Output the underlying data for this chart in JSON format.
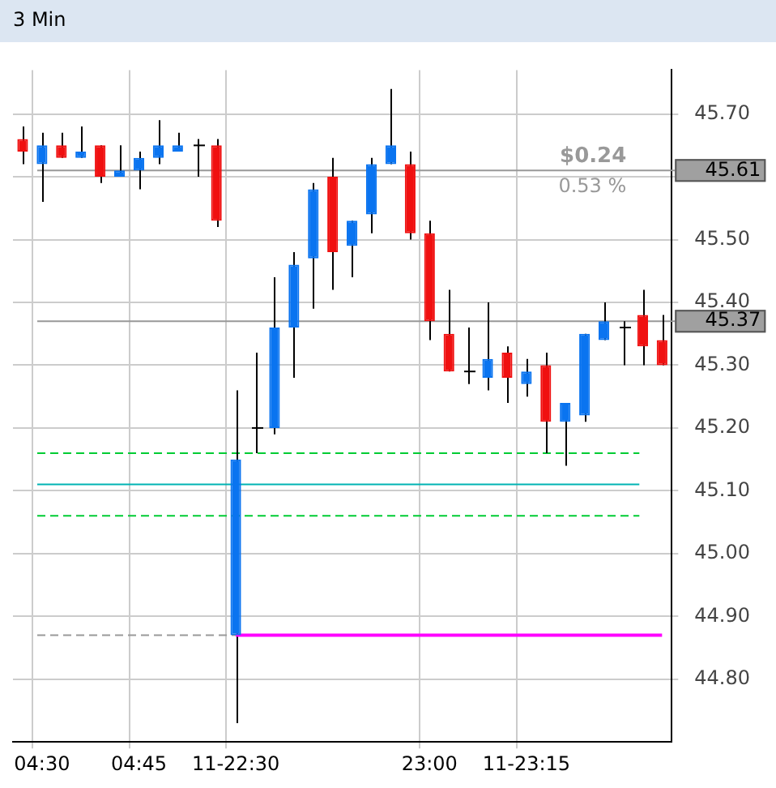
{
  "chart_data": {
    "type": "candlestick",
    "title": "3 Min",
    "categories": [
      null,
      "04:30",
      null,
      null,
      null,
      null,
      "04:45",
      null,
      null,
      null,
      null,
      "11-22:30",
      null,
      null,
      null,
      null,
      null,
      null,
      null,
      null,
      null,
      "23:00",
      null,
      null,
      null,
      null,
      "11-23:15",
      null,
      null,
      null,
      null,
      null,
      null,
      null
    ],
    "ohlc": [
      [
        45.66,
        45.68,
        45.62,
        45.64
      ],
      [
        45.62,
        45.67,
        45.56,
        45.65
      ],
      [
        45.65,
        45.67,
        45.63,
        45.63
      ],
      [
        45.63,
        45.68,
        45.63,
        45.64
      ],
      [
        45.65,
        45.65,
        45.59,
        45.6
      ],
      [
        45.6,
        45.65,
        45.6,
        45.61
      ],
      [
        45.61,
        45.64,
        45.58,
        45.63
      ],
      [
        45.63,
        45.69,
        45.62,
        45.65
      ],
      [
        45.64,
        45.67,
        45.64,
        45.65
      ],
      [
        45.65,
        45.66,
        45.6,
        45.65
      ],
      [
        45.65,
        45.66,
        45.52,
        45.53
      ],
      [
        44.87,
        45.26,
        44.73,
        45.15
      ],
      [
        45.2,
        45.32,
        45.16,
        45.2
      ],
      [
        45.2,
        45.44,
        45.19,
        45.36
      ],
      [
        45.36,
        45.48,
        45.28,
        45.46
      ],
      [
        45.47,
        45.59,
        45.39,
        45.58
      ],
      [
        45.6,
        45.63,
        45.42,
        45.48
      ],
      [
        45.49,
        45.53,
        45.44,
        45.53
      ],
      [
        45.54,
        45.63,
        45.51,
        45.62
      ],
      [
        45.62,
        45.74,
        45.62,
        45.65
      ],
      [
        45.62,
        45.64,
        45.5,
        45.51
      ],
      [
        45.51,
        45.53,
        45.34,
        45.37
      ],
      [
        45.35,
        45.42,
        45.29,
        45.29
      ],
      [
        45.29,
        45.36,
        45.27,
        45.29
      ],
      [
        45.28,
        45.4,
        45.26,
        45.31
      ],
      [
        45.32,
        45.33,
        45.24,
        45.28
      ],
      [
        45.27,
        45.31,
        45.25,
        45.29
      ],
      [
        45.3,
        45.32,
        45.16,
        45.21
      ],
      [
        45.21,
        45.24,
        45.14,
        45.24
      ],
      [
        45.22,
        45.35,
        45.21,
        45.35
      ],
      [
        45.34,
        45.4,
        45.34,
        45.37
      ],
      [
        45.36,
        45.37,
        45.3,
        45.36
      ],
      [
        45.38,
        45.42,
        45.3,
        45.33
      ],
      [
        45.34,
        45.38,
        45.3,
        45.3
      ]
    ],
    "colors": [
      "#f01010",
      "#0a74f0",
      "#f01010",
      "#0a74f0",
      "#f01010",
      "#0a74f0",
      "#0a74f0",
      "#0a74f0",
      "#0a74f0",
      "#000000",
      "#f01010",
      "#0a74f0",
      "#000000",
      "#0a74f0",
      "#0a74f0",
      "#0a74f0",
      "#f01010",
      "#0a74f0",
      "#0a74f0",
      "#0a74f0",
      "#f01010",
      "#f01010",
      "#f01010",
      "#000000",
      "#0a74f0",
      "#f01010",
      "#0a74f0",
      "#f01010",
      "#0a74f0",
      "#0a74f0",
      "#0a74f0",
      "#000000",
      "#f01010",
      "#f01010"
    ],
    "series": [
      {
        "type": "line",
        "color": "#ff00ff",
        "values": [
          null,
          null,
          null,
          null,
          null,
          null,
          null,
          null,
          null,
          null,
          null,
          44.87,
          44.87,
          44.87,
          44.87,
          44.87,
          44.87,
          44.87,
          44.87,
          44.87,
          44.87,
          44.87,
          44.87,
          44.87,
          44.87,
          44.87,
          44.87,
          44.87,
          44.87,
          44.87,
          44.87,
          44.87,
          44.87,
          44.87
        ]
      }
    ],
    "ylim": [
      44.7,
      45.77
    ],
    "yticks": [
      {
        "value": 44.8,
        "label": "44.80"
      },
      {
        "value": 44.9,
        "label": "44.90"
      },
      {
        "value": 45.0,
        "label": "45.00"
      },
      {
        "value": 45.1,
        "label": "45.10"
      },
      {
        "value": 45.2,
        "label": "45.20"
      },
      {
        "value": 45.3,
        "label": "45.30"
      },
      {
        "value": 45.4,
        "label": "45.40"
      },
      {
        "value": 45.5,
        "label": "45.50"
      },
      {
        "value": 45.6,
        "label": null
      },
      {
        "value": 45.7,
        "label": "45.70"
      }
    ],
    "ref_lines": [
      {
        "axis": "y",
        "value": 45.16,
        "color": "#00cc33",
        "line_style": "dashed"
      },
      {
        "axis": "y",
        "value": 45.06,
        "color": "#00cc33",
        "line_style": "dashed"
      },
      {
        "axis": "y",
        "value": 45.11,
        "color": "#00b3b3",
        "line_style": "solid"
      },
      {
        "axis": "y",
        "value": 44.87,
        "color": "#999999",
        "line_style": "dashed"
      },
      {
        "axis": "y",
        "value": 45.61,
        "label": "45.61",
        "color": "#999999",
        "line_style": "solid"
      },
      {
        "axis": "y",
        "value": 45.37,
        "label": "45.37",
        "color": "#999999",
        "line_style": "solid"
      }
    ],
    "annotations": [
      "$0.24",
      "0.53 %"
    ],
    "grid": true,
    "legend": false
  }
}
